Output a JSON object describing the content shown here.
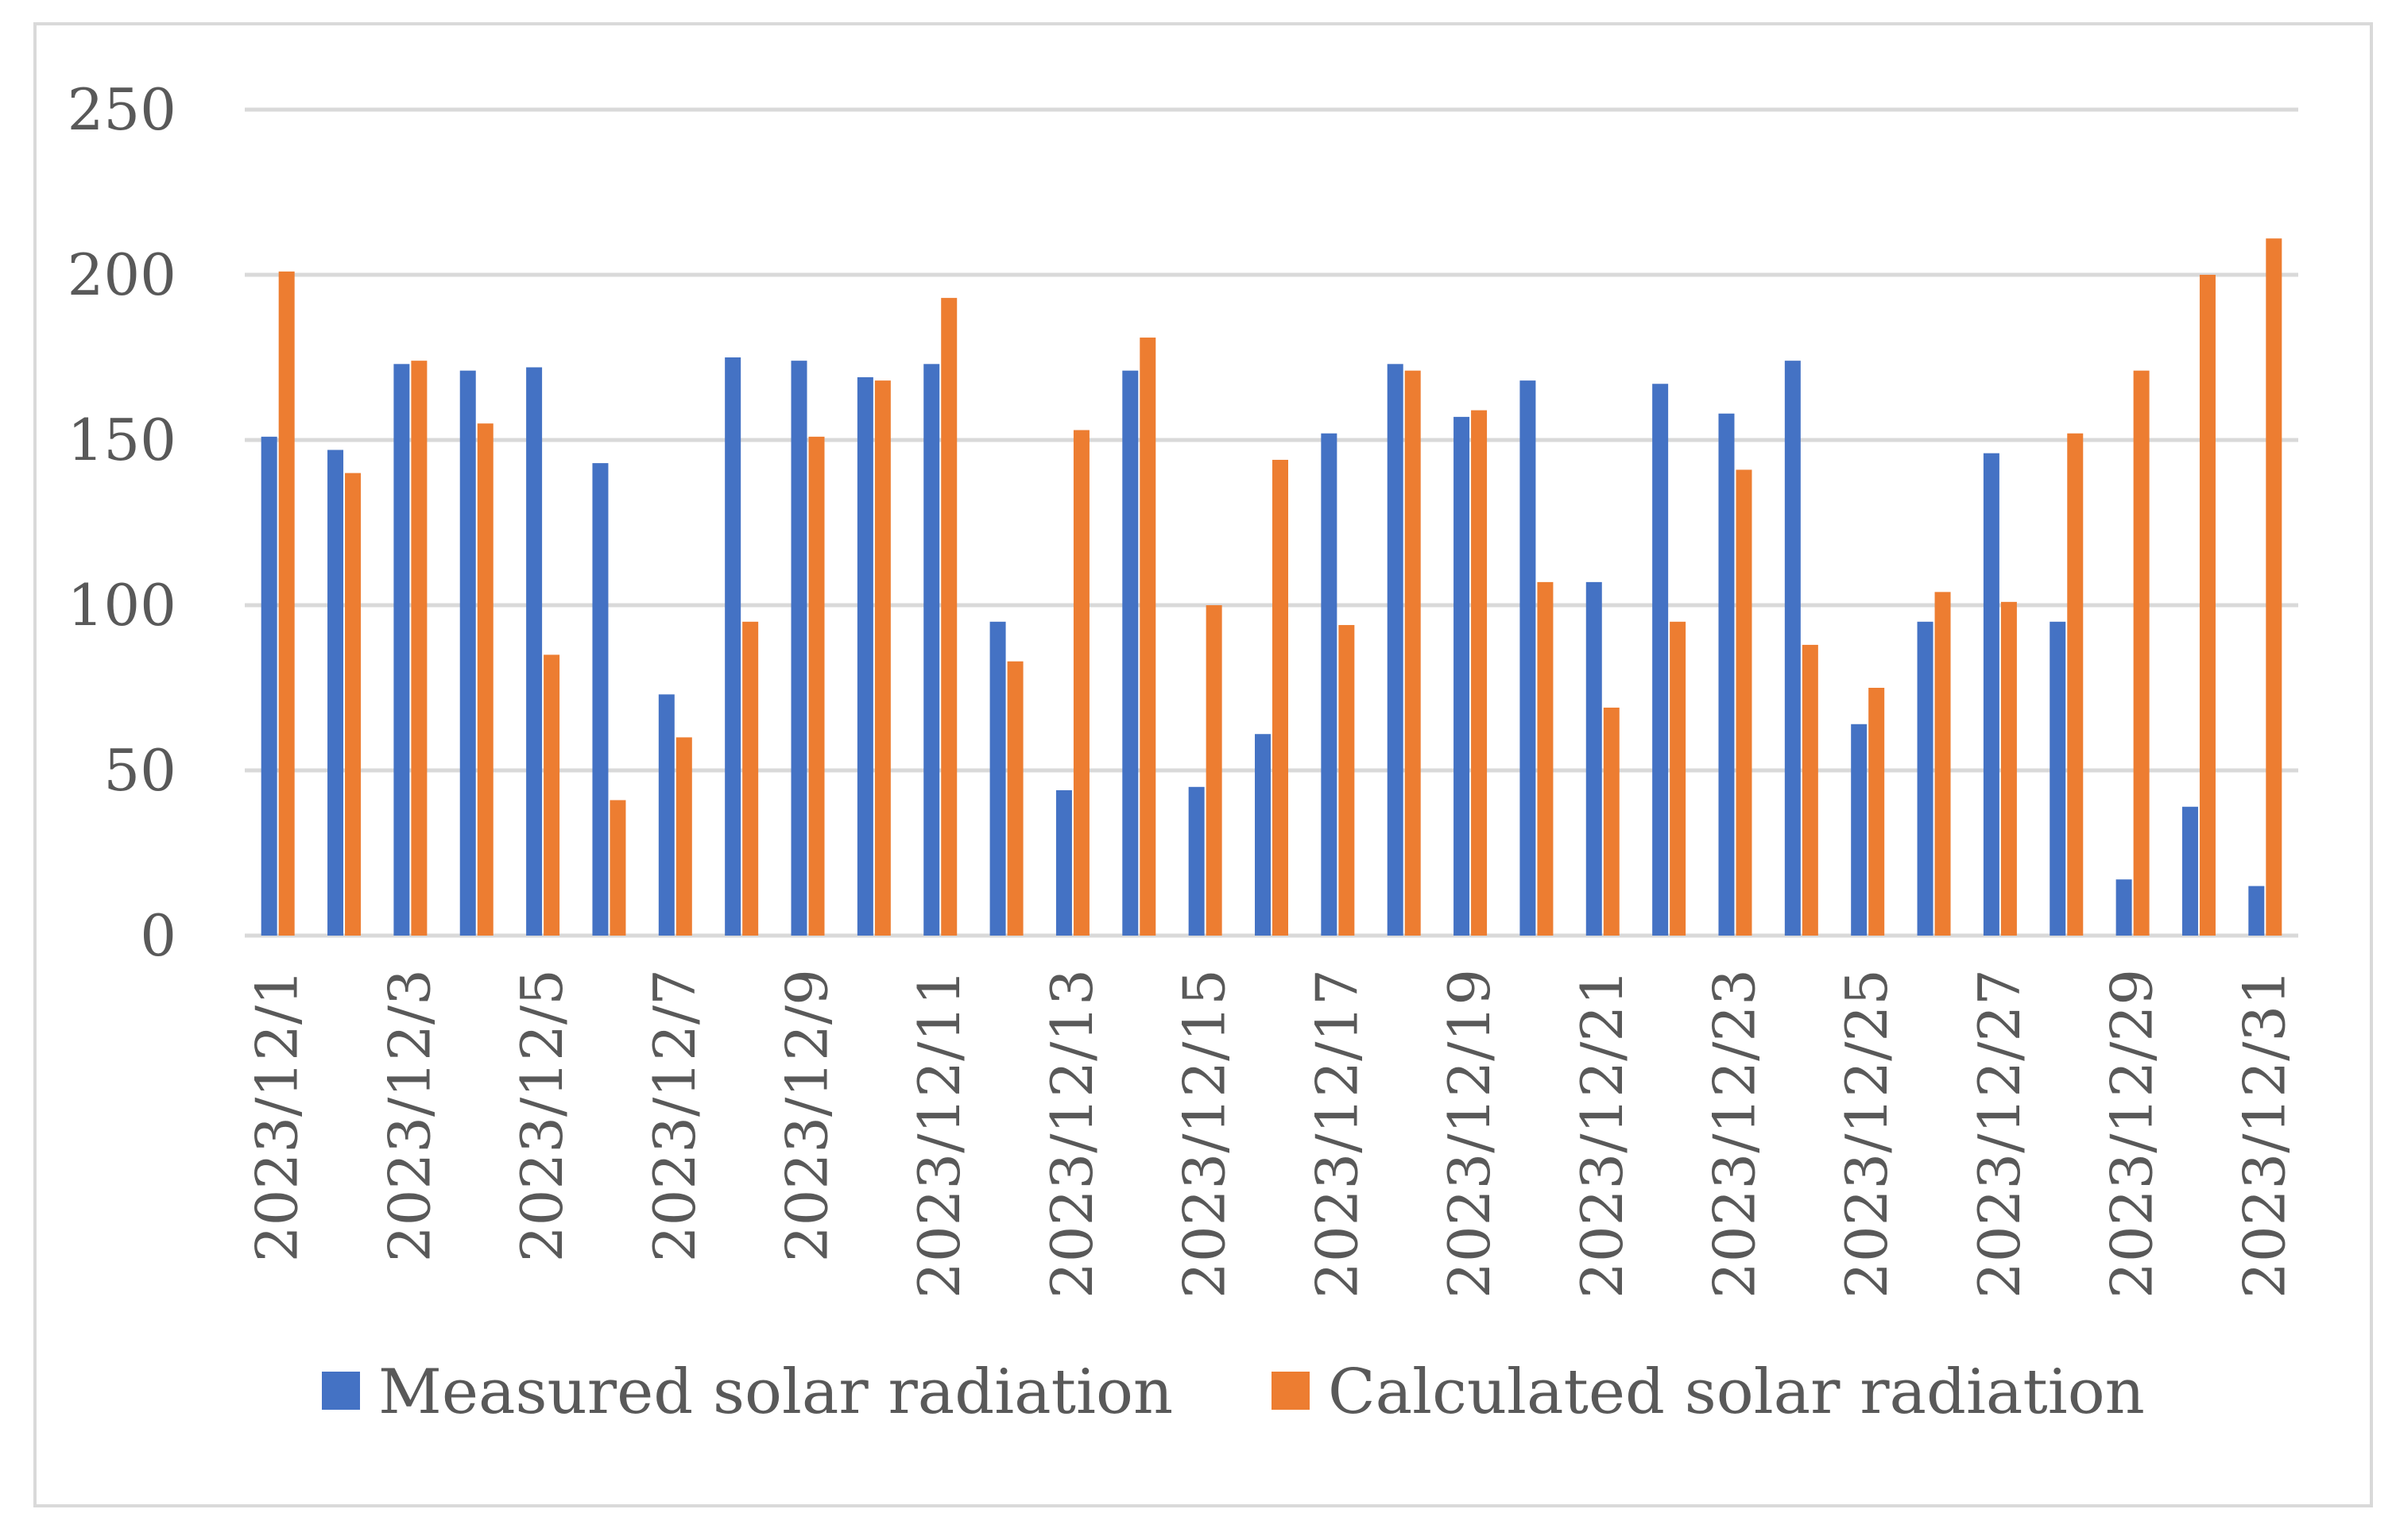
{
  "chart_data": {
    "type": "bar",
    "title": "",
    "xlabel": "",
    "ylabel": "",
    "ylim": [
      0,
      250
    ],
    "yticks": [
      "0",
      "50",
      "100",
      "150",
      "200",
      "250"
    ],
    "grid": true,
    "legend_position": "bottom",
    "categories": [
      "2023/12/1",
      "2023/12/2",
      "2023/12/3",
      "2023/12/4",
      "2023/12/5",
      "2023/12/6",
      "2023/12/7",
      "2023/12/8",
      "2023/12/9",
      "2023/12/10",
      "2023/12/11",
      "2023/12/12",
      "2023/12/13",
      "2023/12/14",
      "2023/12/15",
      "2023/12/16",
      "2023/12/17",
      "2023/12/18",
      "2023/12/19",
      "2023/12/20",
      "2023/12/21",
      "2023/12/22",
      "2023/12/23",
      "2023/12/24",
      "2023/12/25",
      "2023/12/26",
      "2023/12/27",
      "2023/12/28",
      "2023/12/29",
      "2023/12/30",
      "2023/12/31"
    ],
    "shown_category_labels": [
      "2023/12/1",
      "2023/12/3",
      "2023/12/5",
      "2023/12/7",
      "2023/12/9",
      "2023/12/11",
      "2023/12/13",
      "2023/12/15",
      "2023/12/17",
      "2023/12/19",
      "2023/12/21",
      "2023/12/23",
      "2023/12/25",
      "2023/12/27",
      "2023/12/29",
      "2023/12/31"
    ],
    "series": [
      {
        "name": "Measured solar radiation",
        "color": "#4472C4",
        "values": [
          151,
          147,
          173,
          171,
          172,
          143,
          73,
          175,
          174,
          169,
          173,
          95,
          44,
          171,
          45,
          61,
          152,
          173,
          157,
          168,
          107,
          167,
          158,
          174,
          64,
          95,
          146,
          95,
          17,
          39,
          15
        ]
      },
      {
        "name": "Calculated solar radiation",
        "color": "#ED7D31",
        "values": [
          201,
          140,
          174,
          155,
          85,
          41,
          60,
          95,
          151,
          168,
          193,
          83,
          153,
          181,
          100,
          144,
          94,
          171,
          159,
          107,
          69,
          95,
          141,
          88,
          75,
          104,
          101,
          152,
          171,
          200,
          211
        ]
      }
    ]
  }
}
